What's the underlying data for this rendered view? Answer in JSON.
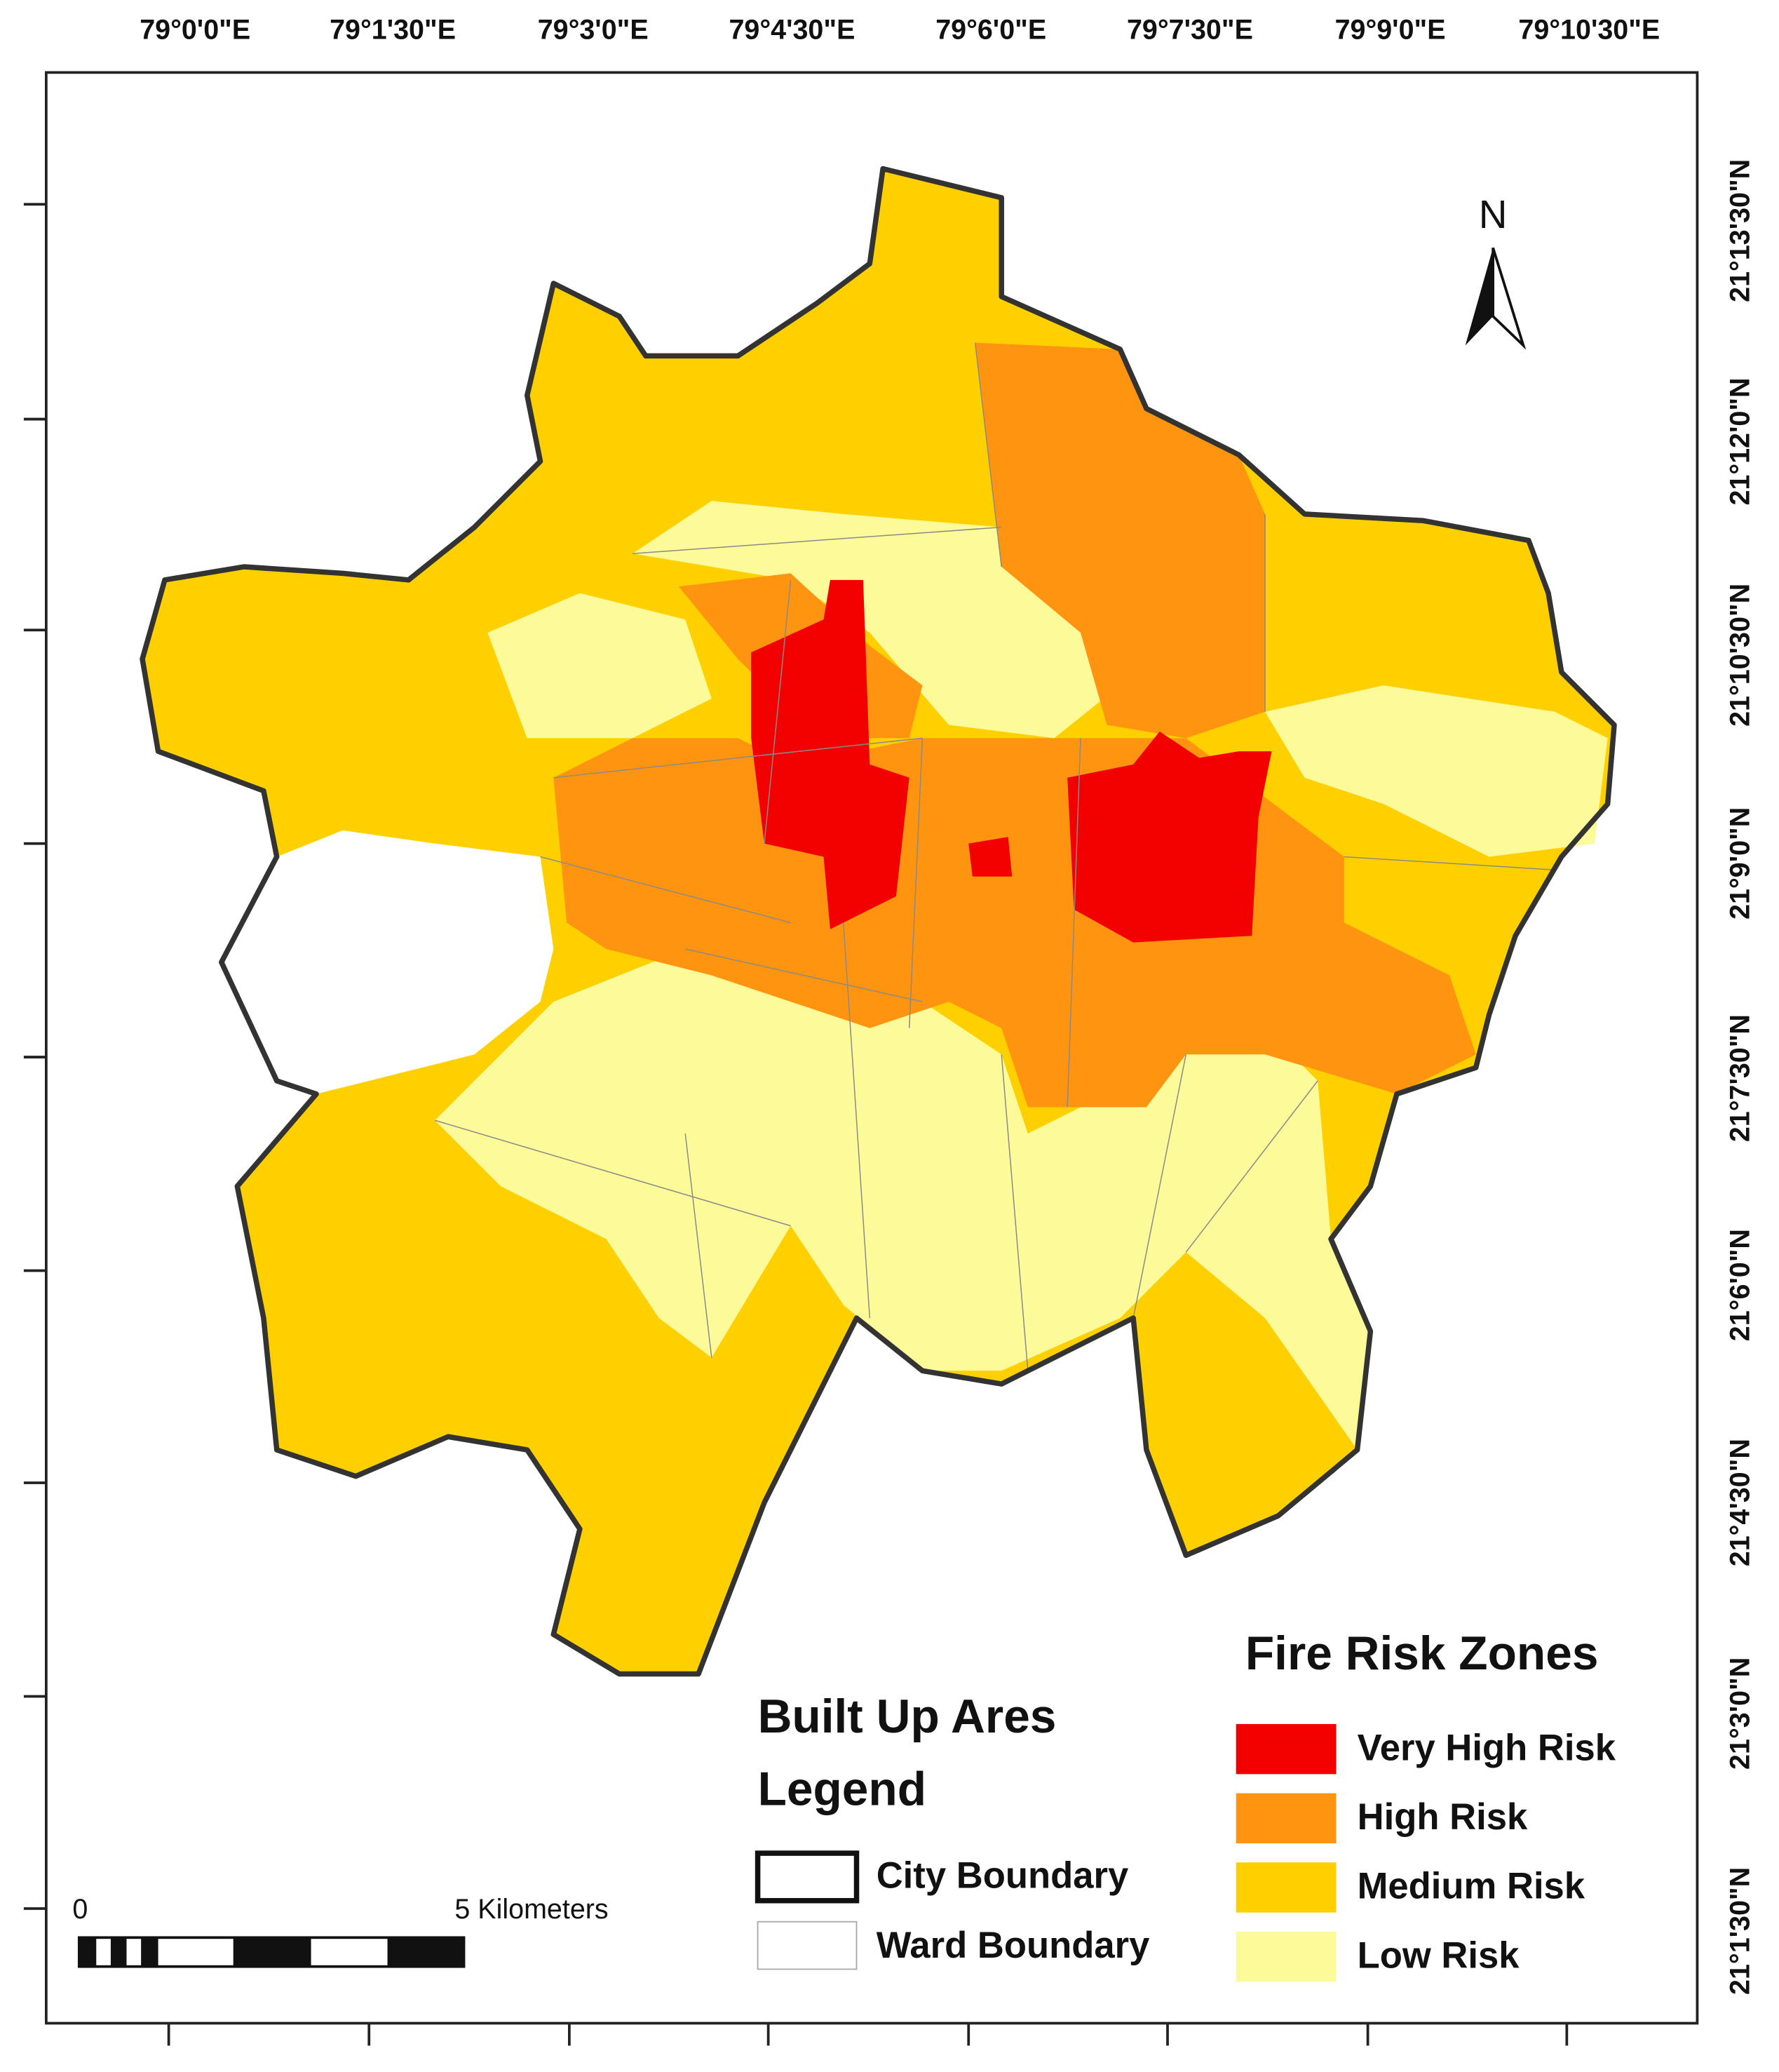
{
  "map": {
    "lon_labels": [
      "79°0'0\"E",
      "79°1'30\"E",
      "79°3'0\"E",
      "79°4'30\"E",
      "79°6'0\"E",
      "79°7'30\"E",
      "79°9'0\"E",
      "79°10'30\"E"
    ],
    "lat_labels": [
      "21°13'30\"N",
      "21°12'0\"N",
      "21°10'30\"N",
      "21°9'0\"N",
      "21°7'30\"N",
      "21°6'0\"N",
      "21°4'30\"N",
      "21°3'0\"N",
      "21°1'30\"N"
    ]
  },
  "north": "N",
  "scale_bar": {
    "start": "0",
    "end": "5 Kilometers"
  },
  "legend_boundaries": {
    "title_1": "Built Up Ares",
    "title_2": "Legend",
    "items": [
      {
        "label": "City Boundary"
      },
      {
        "label": "Ward Boundary"
      }
    ]
  },
  "legend_zones": {
    "title": "Fire Risk Zones",
    "items": [
      {
        "label": "Very High Risk",
        "color": "#f20000"
      },
      {
        "label": "High Risk",
        "color": "#ff9410"
      },
      {
        "label": "Medium Risk",
        "color": "#ffd000"
      },
      {
        "label": "Low Risk",
        "color": "#fdfa9a"
      }
    ]
  }
}
